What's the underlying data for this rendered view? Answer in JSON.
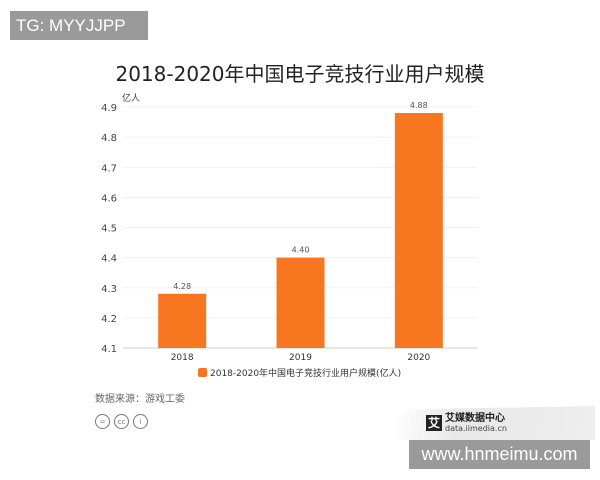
{
  "watermark_top": "TG: MYYJJPP",
  "watermark_bottom": "www.hnmeimu.com",
  "source": "数据来源：游戏工委",
  "license_icons": [
    "=",
    "cc",
    "person"
  ],
  "logo": {
    "name": "艾媒数据中心",
    "url": "data.iimedia.cn",
    "mark": "艾"
  },
  "chart_data": {
    "type": "bar",
    "title": "2018-2020年中国电子竞技行业用户规模",
    "ylabel": "亿人",
    "categories": [
      "2018",
      "2019",
      "2020"
    ],
    "series": [
      {
        "name": "2018-2020年中国电子竞技行业用户规模(亿人)",
        "values": [
          4.28,
          4.4,
          4.88
        ],
        "labels": [
          "4.28",
          "4.40",
          "4.88"
        ],
        "color": "#f7761f"
      }
    ],
    "ylim": [
      4.1,
      4.9
    ],
    "yticks": [
      "4.1",
      "4.2",
      "4.3",
      "4.4",
      "4.5",
      "4.6",
      "4.7",
      "4.8",
      "4.9"
    ],
    "grid": true,
    "legend": "bottom"
  }
}
